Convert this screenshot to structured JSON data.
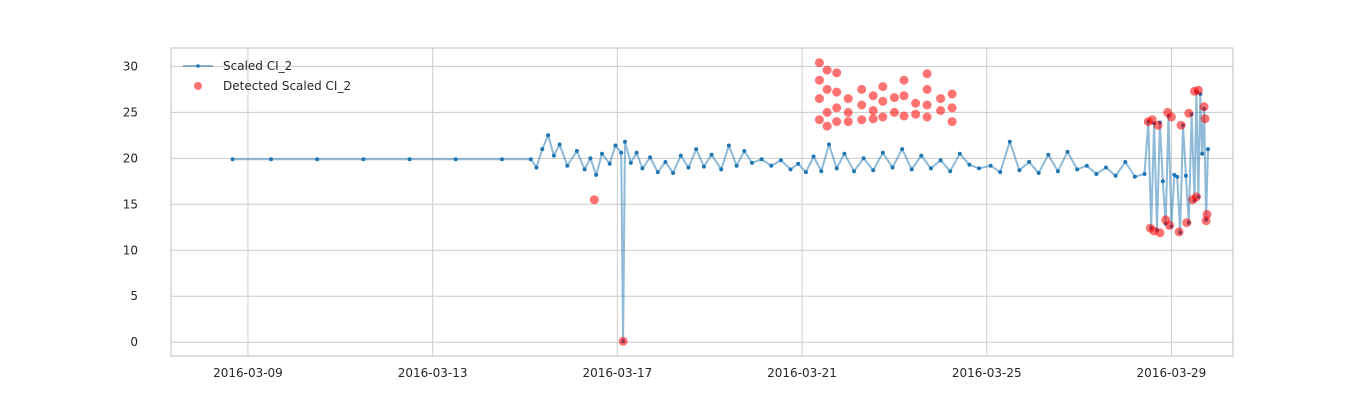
{
  "chart_data": {
    "type": "line",
    "title": "",
    "xlabel": "",
    "ylabel": "",
    "x_type": "date",
    "xlim": [
      "2016-03-07T08:00",
      "2016-03-30T08:00"
    ],
    "ylim": [
      -1.5,
      32
    ],
    "grid": true,
    "legend_position": "top-left",
    "x_ticks": [
      "2016-03-09",
      "2016-03-13",
      "2016-03-17",
      "2016-03-21",
      "2016-03-25",
      "2016-03-29"
    ],
    "y_ticks": [
      0,
      5,
      10,
      15,
      20,
      25,
      30
    ],
    "colors": {
      "series": "#1f77b4",
      "detected": "#ff0000",
      "grid": "#cccccc",
      "frame": "#bfbfbf"
    },
    "series": [
      {
        "name": "Scaled CI_2",
        "style": "line-with-dot-markers",
        "points": [
          [
            "2016-03-08T16:00",
            19.9
          ],
          [
            "2016-03-09T12:00",
            19.9
          ],
          [
            "2016-03-10T12:00",
            19.9
          ],
          [
            "2016-03-11T12:00",
            19.9
          ],
          [
            "2016-03-12T12:00",
            19.9
          ],
          [
            "2016-03-13T12:00",
            19.9
          ],
          [
            "2016-03-14T12:00",
            19.9
          ],
          [
            "2016-03-15T03:00",
            19.9
          ],
          [
            "2016-03-15T06:00",
            19.0
          ],
          [
            "2016-03-15T09:00",
            21.0
          ],
          [
            "2016-03-15T12:00",
            22.5
          ],
          [
            "2016-03-15T15:00",
            20.3
          ],
          [
            "2016-03-15T18:00",
            21.5
          ],
          [
            "2016-03-15T22:00",
            19.2
          ],
          [
            "2016-03-16T03:00",
            20.8
          ],
          [
            "2016-03-16T07:00",
            18.8
          ],
          [
            "2016-03-16T10:00",
            20.0
          ],
          [
            "2016-03-16T13:00",
            18.2
          ],
          [
            "2016-03-16T16:00",
            20.5
          ],
          [
            "2016-03-16T20:00",
            19.4
          ],
          [
            "2016-03-16T23:00",
            21.4
          ],
          [
            "2016-03-17T02:00",
            20.6
          ],
          [
            "2016-03-17T03:00",
            0.1
          ],
          [
            "2016-03-17T04:00",
            21.8
          ],
          [
            "2016-03-17T07:00",
            19.5
          ],
          [
            "2016-03-17T10:00",
            20.6
          ],
          [
            "2016-03-17T13:00",
            18.9
          ],
          [
            "2016-03-17T17:00",
            20.1
          ],
          [
            "2016-03-17T21:00",
            18.5
          ],
          [
            "2016-03-18T01:00",
            19.6
          ],
          [
            "2016-03-18T05:00",
            18.4
          ],
          [
            "2016-03-18T09:00",
            20.3
          ],
          [
            "2016-03-18T13:00",
            19.0
          ],
          [
            "2016-03-18T17:00",
            21.0
          ],
          [
            "2016-03-18T21:00",
            19.1
          ],
          [
            "2016-03-19T01:00",
            20.4
          ],
          [
            "2016-03-19T06:00",
            18.8
          ],
          [
            "2016-03-19T10:00",
            21.4
          ],
          [
            "2016-03-19T14:00",
            19.2
          ],
          [
            "2016-03-19T18:00",
            20.8
          ],
          [
            "2016-03-19T22:00",
            19.5
          ],
          [
            "2016-03-20T03:00",
            19.9
          ],
          [
            "2016-03-20T08:00",
            19.2
          ],
          [
            "2016-03-20T13:00",
            19.8
          ],
          [
            "2016-03-20T18:00",
            18.8
          ],
          [
            "2016-03-20T22:00",
            19.4
          ],
          [
            "2016-03-21T02:00",
            18.5
          ],
          [
            "2016-03-21T06:00",
            20.2
          ],
          [
            "2016-03-21T10:00",
            18.6
          ],
          [
            "2016-03-21T14:00",
            21.5
          ],
          [
            "2016-03-21T18:00",
            18.9
          ],
          [
            "2016-03-21T22:00",
            20.5
          ],
          [
            "2016-03-22T03:00",
            18.6
          ],
          [
            "2016-03-22T08:00",
            20.0
          ],
          [
            "2016-03-22T13:00",
            18.7
          ],
          [
            "2016-03-22T18:00",
            20.6
          ],
          [
            "2016-03-22T23:00",
            19.0
          ],
          [
            "2016-03-23T04:00",
            21.0
          ],
          [
            "2016-03-23T09:00",
            18.8
          ],
          [
            "2016-03-23T14:00",
            20.3
          ],
          [
            "2016-03-23T19:00",
            18.9
          ],
          [
            "2016-03-24T00:00",
            19.8
          ],
          [
            "2016-03-24T05:00",
            18.6
          ],
          [
            "2016-03-24T10:00",
            20.5
          ],
          [
            "2016-03-24T15:00",
            19.3
          ],
          [
            "2016-03-24T20:00",
            18.9
          ],
          [
            "2016-03-25T02:00",
            19.2
          ],
          [
            "2016-03-25T07:00",
            18.5
          ],
          [
            "2016-03-25T12:00",
            21.8
          ],
          [
            "2016-03-25T17:00",
            18.7
          ],
          [
            "2016-03-25T22:00",
            19.6
          ],
          [
            "2016-03-26T03:00",
            18.4
          ],
          [
            "2016-03-26T08:00",
            20.4
          ],
          [
            "2016-03-26T13:00",
            18.6
          ],
          [
            "2016-03-26T18:00",
            20.7
          ],
          [
            "2016-03-26T23:00",
            18.8
          ],
          [
            "2016-03-27T04:00",
            19.2
          ],
          [
            "2016-03-27T09:00",
            18.3
          ],
          [
            "2016-03-27T14:00",
            19.0
          ],
          [
            "2016-03-27T19:00",
            18.1
          ],
          [
            "2016-03-28T00:00",
            19.6
          ],
          [
            "2016-03-28T05:00",
            18.0
          ],
          [
            "2016-03-28T10:00",
            18.3
          ],
          [
            "2016-03-28T12:00",
            24.0
          ],
          [
            "2016-03-28T13:30",
            12.4
          ],
          [
            "2016-03-28T15:00",
            23.8
          ],
          [
            "2016-03-28T16:30",
            12.2
          ],
          [
            "2016-03-28T18:00",
            23.9
          ],
          [
            "2016-03-28T19:30",
            17.5
          ],
          [
            "2016-03-28T21:00",
            12.9
          ],
          [
            "2016-03-28T22:30",
            24.6
          ],
          [
            "2016-03-29T00:00",
            12.6
          ],
          [
            "2016-03-29T01:30",
            18.2
          ],
          [
            "2016-03-29T03:00",
            18.0
          ],
          [
            "2016-03-29T04:30",
            11.9
          ],
          [
            "2016-03-29T06:00",
            23.6
          ],
          [
            "2016-03-29T07:30",
            18.1
          ],
          [
            "2016-03-29T09:00",
            13.0
          ],
          [
            "2016-03-29T10:30",
            24.8
          ],
          [
            "2016-03-29T12:00",
            15.4
          ],
          [
            "2016-03-29T13:00",
            27.2
          ],
          [
            "2016-03-29T14:00",
            15.8
          ],
          [
            "2016-03-29T15:00",
            27.0
          ],
          [
            "2016-03-29T16:00",
            20.5
          ],
          [
            "2016-03-29T17:00",
            25.4
          ],
          [
            "2016-03-29T18:00",
            13.3
          ],
          [
            "2016-03-29T19:00",
            21.0
          ]
        ]
      },
      {
        "name": "Detected Scaled CI_2",
        "style": "scatter",
        "points": [
          [
            "2016-03-16T12:00",
            15.5
          ],
          [
            "2016-03-17T03:00",
            0.1
          ],
          [
            "2016-03-21T09:00",
            30.4
          ],
          [
            "2016-03-21T09:00",
            28.5
          ],
          [
            "2016-03-21T09:00",
            26.5
          ],
          [
            "2016-03-21T09:00",
            24.2
          ],
          [
            "2016-03-21T13:00",
            29.6
          ],
          [
            "2016-03-21T13:00",
            27.5
          ],
          [
            "2016-03-21T13:00",
            25.0
          ],
          [
            "2016-03-21T13:00",
            23.5
          ],
          [
            "2016-03-21T18:00",
            29.3
          ],
          [
            "2016-03-21T18:00",
            27.2
          ],
          [
            "2016-03-21T18:00",
            25.5
          ],
          [
            "2016-03-21T18:00",
            24.0
          ],
          [
            "2016-03-22T00:00",
            26.5
          ],
          [
            "2016-03-22T00:00",
            25.0
          ],
          [
            "2016-03-22T00:00",
            24.0
          ],
          [
            "2016-03-22T07:00",
            27.5
          ],
          [
            "2016-03-22T07:00",
            25.8
          ],
          [
            "2016-03-22T07:00",
            24.2
          ],
          [
            "2016-03-22T13:00",
            26.8
          ],
          [
            "2016-03-22T13:00",
            25.2
          ],
          [
            "2016-03-22T13:00",
            24.3
          ],
          [
            "2016-03-22T18:00",
            27.8
          ],
          [
            "2016-03-22T18:00",
            26.2
          ],
          [
            "2016-03-22T18:00",
            24.5
          ],
          [
            "2016-03-23T00:00",
            26.6
          ],
          [
            "2016-03-23T00:00",
            25.0
          ],
          [
            "2016-03-23T05:00",
            28.5
          ],
          [
            "2016-03-23T05:00",
            26.8
          ],
          [
            "2016-03-23T05:00",
            24.6
          ],
          [
            "2016-03-23T11:00",
            26.0
          ],
          [
            "2016-03-23T11:00",
            24.8
          ],
          [
            "2016-03-23T17:00",
            29.2
          ],
          [
            "2016-03-23T17:00",
            27.5
          ],
          [
            "2016-03-23T17:00",
            25.8
          ],
          [
            "2016-03-23T17:00",
            24.5
          ],
          [
            "2016-03-24T00:00",
            26.5
          ],
          [
            "2016-03-24T00:00",
            25.2
          ],
          [
            "2016-03-24T06:00",
            27.0
          ],
          [
            "2016-03-24T06:00",
            25.5
          ],
          [
            "2016-03-24T06:00",
            24.0
          ],
          [
            "2016-03-28T12:00",
            24.0
          ],
          [
            "2016-03-28T13:00",
            12.4
          ],
          [
            "2016-03-28T14:00",
            24.2
          ],
          [
            "2016-03-28T15:00",
            12.1
          ],
          [
            "2016-03-28T17:00",
            23.6
          ],
          [
            "2016-03-28T18:00",
            11.9
          ],
          [
            "2016-03-28T21:00",
            13.3
          ],
          [
            "2016-03-28T22:00",
            25.0
          ],
          [
            "2016-03-28T23:00",
            12.7
          ],
          [
            "2016-03-29T00:00",
            24.5
          ],
          [
            "2016-03-29T04:00",
            12.0
          ],
          [
            "2016-03-29T05:00",
            23.6
          ],
          [
            "2016-03-29T08:00",
            13.0
          ],
          [
            "2016-03-29T09:00",
            24.9
          ],
          [
            "2016-03-29T11:00",
            15.5
          ],
          [
            "2016-03-29T12:00",
            27.3
          ],
          [
            "2016-03-29T13:00",
            15.8
          ],
          [
            "2016-03-29T14:00",
            27.4
          ],
          [
            "2016-03-29T17:00",
            25.6
          ],
          [
            "2016-03-29T17:30",
            24.3
          ],
          [
            "2016-03-29T18:00",
            13.2
          ],
          [
            "2016-03-29T18:30",
            13.9
          ]
        ]
      }
    ]
  }
}
